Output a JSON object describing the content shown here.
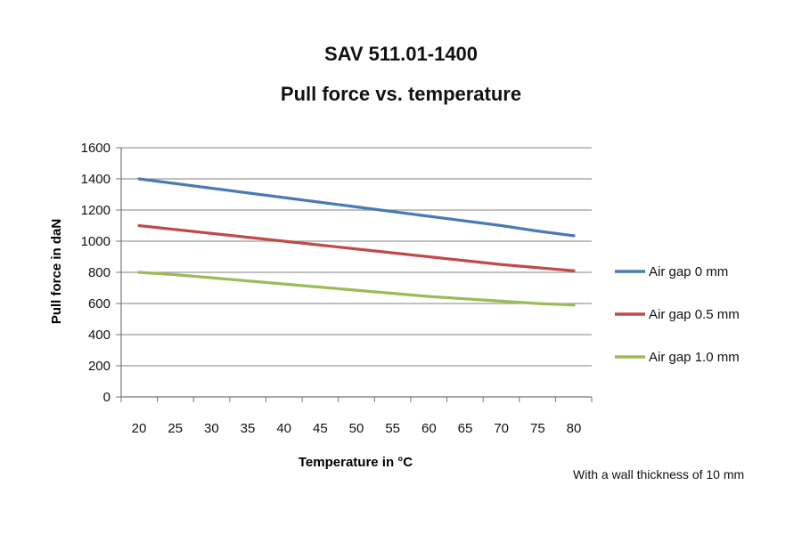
{
  "chart_data": {
    "type": "line",
    "title": "SAV 511.01-1400",
    "subtitle": "Pull force vs. temperature",
    "xlabel": "Temperature in °C",
    "ylabel": "Pull force in daN",
    "x": [
      20,
      25,
      30,
      35,
      40,
      45,
      50,
      55,
      60,
      65,
      70,
      75,
      80
    ],
    "xlim": [
      20,
      80
    ],
    "ylim": [
      0,
      1600
    ],
    "yticks": [
      0,
      200,
      400,
      600,
      800,
      1000,
      1200,
      1400,
      1600
    ],
    "grid": true,
    "legend_position": "right",
    "series": [
      {
        "name": "Air gap 0 mm",
        "color": "#4a7ab5",
        "values": [
          1400,
          1370,
          1340,
          1310,
          1280,
          1250,
          1220,
          1190,
          1160,
          1130,
          1100,
          1065,
          1035
        ]
      },
      {
        "name": "Air gap 0.5 mm",
        "color": "#bf4b48",
        "values": [
          1100,
          1075,
          1050,
          1025,
          1000,
          975,
          950,
          925,
          900,
          875,
          850,
          830,
          810
        ]
      },
      {
        "name": "Air gap 1.0 mm",
        "color": "#9bbb59",
        "values": [
          800,
          785,
          765,
          745,
          725,
          705,
          685,
          665,
          645,
          630,
          615,
          600,
          590
        ]
      }
    ],
    "note": "With a wall thickness of 10 mm"
  }
}
